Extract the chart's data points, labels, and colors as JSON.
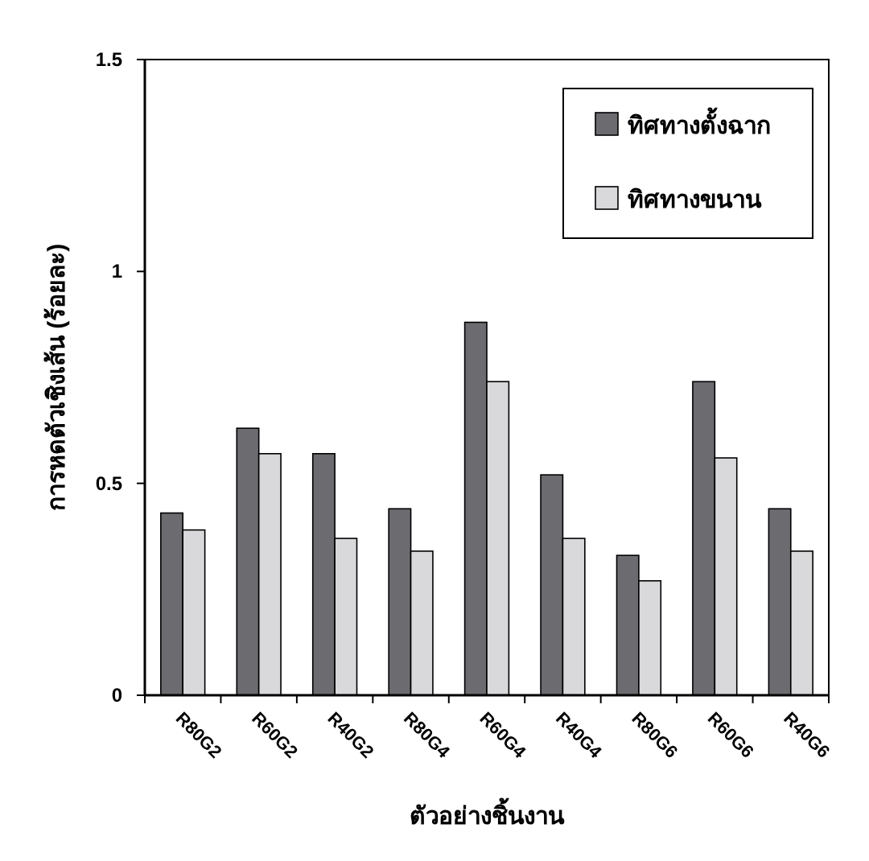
{
  "chart_data": {
    "type": "bar",
    "xlabel": "ตัวอย่างชิ้นงาน",
    "ylabel": "การหดตัวเชิงเส้น (ร้อยละ)",
    "categories": [
      "R80G2",
      "R60G2",
      "R40G2",
      "R80G4",
      "R60G4",
      "R40G4",
      "R80G6",
      "R60G6",
      "R40G6"
    ],
    "series": [
      {
        "name": "ทิศทางตั้งฉาก",
        "color": "#6b6b70",
        "values": [
          0.43,
          0.63,
          0.57,
          0.44,
          0.88,
          0.52,
          0.33,
          0.74,
          0.44
        ]
      },
      {
        "name": "ทิศทางขนาน",
        "color": "#d9d9db",
        "values": [
          0.39,
          0.57,
          0.37,
          0.34,
          0.74,
          0.37,
          0.27,
          0.56,
          0.34
        ]
      }
    ],
    "ylim": [
      0,
      1.5
    ],
    "yticks": [
      0,
      0.5,
      1,
      1.5
    ],
    "legend": "top right"
  }
}
